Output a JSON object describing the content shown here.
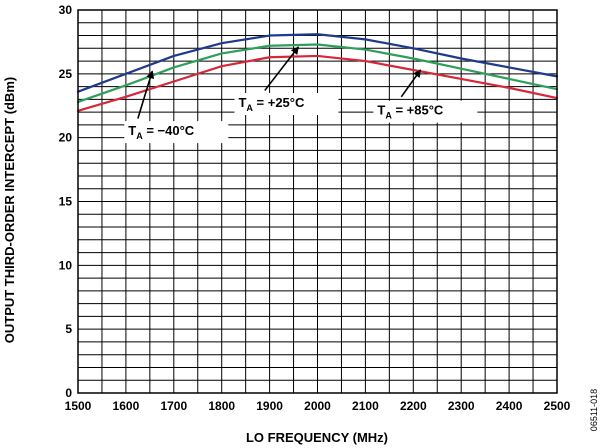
{
  "chart_data": {
    "type": "line",
    "title": "",
    "xlabel": "LO FREQUENCY (MHz)",
    "ylabel": "OUTPUT THIRD-ORDER INTERCEPT (dBm)",
    "xlim": [
      1500,
      2500
    ],
    "ylim": [
      0,
      30
    ],
    "x_ticks": [
      "1500",
      "1600",
      "1700",
      "1800",
      "1900",
      "2000",
      "2100",
      "2200",
      "2300",
      "2400",
      "2500"
    ],
    "y_ticks": [
      "0",
      "5",
      "10",
      "15",
      "20",
      "25",
      "30"
    ],
    "grid": true,
    "legend": "none",
    "x": [
      1500,
      1600,
      1700,
      1800,
      1900,
      2000,
      2100,
      2200,
      2300,
      2400,
      2500
    ],
    "series": [
      {
        "key": "minus40",
        "color": "#1f3a8a",
        "values": [
          23.6,
          25.0,
          26.4,
          27.4,
          28.0,
          28.1,
          27.7,
          27.0,
          26.2,
          25.5,
          24.8
        ]
      },
      {
        "key": "plus25",
        "color": "#2e9e5b",
        "values": [
          22.8,
          24.1,
          25.5,
          26.6,
          27.2,
          27.3,
          26.9,
          26.2,
          25.4,
          24.6,
          23.8
        ]
      },
      {
        "key": "plus85",
        "color": "#d62839",
        "values": [
          22.1,
          23.2,
          24.4,
          25.6,
          26.3,
          26.4,
          26.0,
          25.3,
          24.6,
          23.9,
          23.1
        ]
      }
    ],
    "annotations": [
      {
        "key": "minus40",
        "main": "T",
        "sub": "A",
        "rest": " = −40°C",
        "label_at": [
          1605,
          20.2
        ],
        "arrow_from": [
          1625,
          21.5
        ],
        "arrow_to": [
          1655,
          25.2
        ]
      },
      {
        "key": "plus25",
        "main": "T",
        "sub": "A",
        "rest": " = +25°C",
        "label_at": [
          1835,
          22.4
        ],
        "arrow_from": [
          1890,
          23.7
        ],
        "arrow_to": [
          1960,
          27.1
        ]
      },
      {
        "key": "plus85",
        "main": "T",
        "sub": "A",
        "rest": " = +85°C",
        "label_at": [
          2125,
          21.8
        ],
        "arrow_from": [
          2175,
          23.2
        ],
        "arrow_to": [
          2215,
          25.3
        ]
      }
    ],
    "figure_id": "06511-018"
  }
}
